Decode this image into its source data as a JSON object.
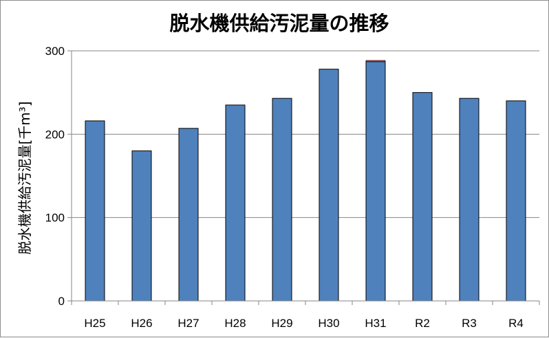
{
  "chart_data": {
    "type": "bar",
    "title": "脱水機供給汚泥量の推移",
    "ylabel": "脱水機供給汚泥量[千m³]",
    "xlabel": "",
    "categories": [
      "H25",
      "H26",
      "H27",
      "H28",
      "H29",
      "H30",
      "H31",
      "R2",
      "R3",
      "R4"
    ],
    "series": [
      {
        "values": [
          216,
          180,
          207,
          235,
          243,
          278,
          287,
          250,
          243,
          240
        ]
      },
      {
        "values": [
          0,
          0,
          0,
          0,
          0,
          0,
          1.5,
          0,
          0,
          0
        ]
      }
    ],
    "ylim": [
      0,
      300
    ],
    "yticks": [
      0,
      100,
      200,
      300
    ],
    "grid": true,
    "legend": "none"
  },
  "colors": {
    "bar_main": "#4f81bd",
    "bar_top": "#c0504d",
    "bar_edge": "#000000",
    "grid": "#868686",
    "axis": "#868686"
  }
}
